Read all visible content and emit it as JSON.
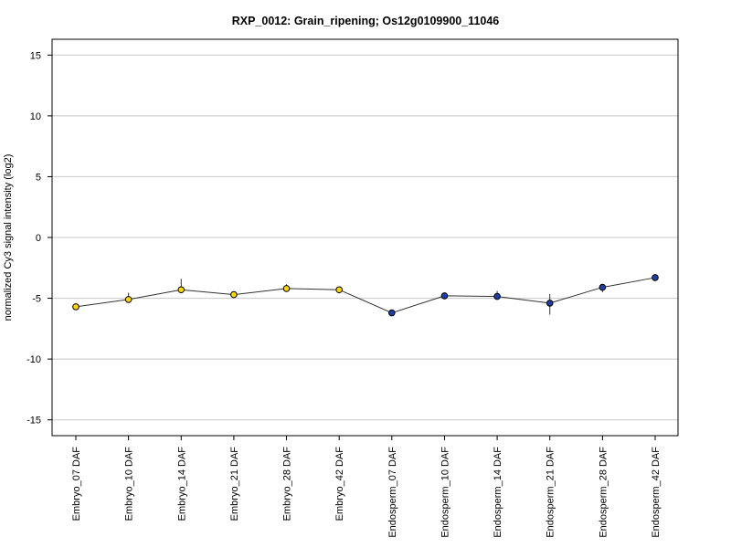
{
  "chart_data": {
    "type": "line",
    "title": "RXP_0012: Grain_ripening; Os12g0109900_11046",
    "ylabel": "normalized Cy3 signal intensity (log2)",
    "xlabel": "",
    "ylim": [
      -16.3,
      16.3
    ],
    "yticks": [
      -15,
      -10,
      -5,
      0,
      5,
      10,
      15
    ],
    "grid": true,
    "categories": [
      "Embryo_07 DAF",
      "Embryo_10 DAF",
      "Embryo_14 DAF",
      "Embryo_21 DAF",
      "Embryo_28 DAF",
      "Embryo_42 DAF",
      "Endosperm_07 DAF",
      "Endosperm_10 DAF",
      "Endosperm_14 DAF",
      "Endosperm_21 DAF",
      "Endosperm_28 DAF",
      "Endosperm_42 DAF"
    ],
    "values": [
      -5.7,
      -5.1,
      -4.3,
      -4.7,
      -4.2,
      -4.3,
      -6.2,
      -4.8,
      -4.85,
      -5.4,
      -4.1,
      -3.3
    ],
    "error_low": [
      -5.75,
      -5.25,
      -4.45,
      -4.8,
      -4.45,
      -4.6,
      -6.25,
      -5.0,
      -5.05,
      -6.35,
      -4.5,
      -3.35
    ],
    "error_high": [
      -5.65,
      -4.55,
      -3.4,
      -4.55,
      -3.85,
      -4.05,
      -6.15,
      -4.6,
      -4.4,
      -4.65,
      -3.95,
      -3.25
    ],
    "point_colors": [
      "#ffd700",
      "#ffd700",
      "#ffd700",
      "#ffd700",
      "#ffd700",
      "#ffd700",
      "#1c3fa8",
      "#1c3fa8",
      "#1c3fa8",
      "#1c3fa8",
      "#1c3fa8",
      "#1c3fa8"
    ],
    "line_color": "#333333",
    "grid_color": "#c8c8c8"
  }
}
